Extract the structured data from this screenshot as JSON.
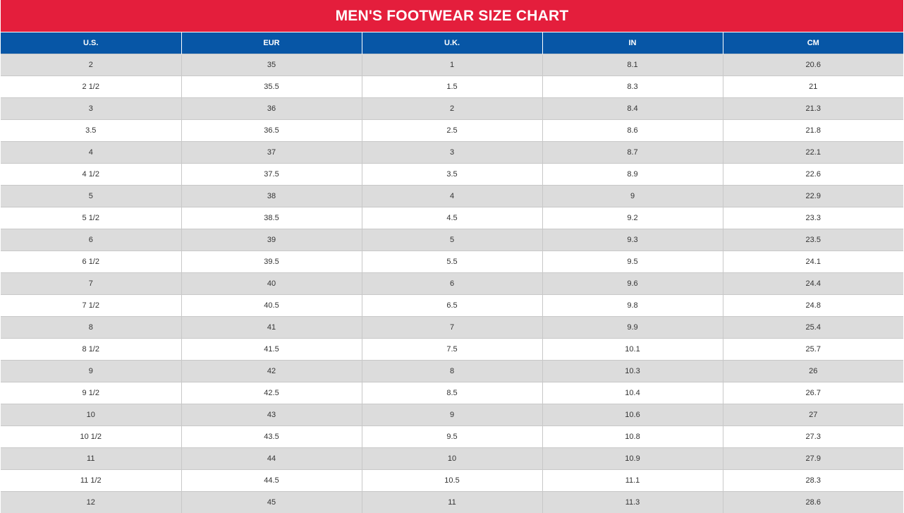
{
  "chart": {
    "title": "MEN'S FOOTWEAR SIZE CHART",
    "columns": [
      "U.S.",
      "EUR",
      "U.K.",
      "IN",
      "CM"
    ],
    "rows": [
      [
        "2",
        "35",
        "1",
        "8.1",
        "20.6"
      ],
      [
        "2 1/2",
        "35.5",
        "1.5",
        "8.3",
        "21"
      ],
      [
        "3",
        "36",
        "2",
        "8.4",
        "21.3"
      ],
      [
        "3.5",
        "36.5",
        "2.5",
        "8.6",
        "21.8"
      ],
      [
        "4",
        "37",
        "3",
        "8.7",
        "22.1"
      ],
      [
        "4 1/2",
        "37.5",
        "3.5",
        "8.9",
        "22.6"
      ],
      [
        "5",
        "38",
        "4",
        "9",
        "22.9"
      ],
      [
        "5 1/2",
        "38.5",
        "4.5",
        "9.2",
        "23.3"
      ],
      [
        "6",
        "39",
        "5",
        "9.3",
        "23.5"
      ],
      [
        "6 1/2",
        "39.5",
        "5.5",
        "9.5",
        "24.1"
      ],
      [
        "7",
        "40",
        "6",
        "9.6",
        "24.4"
      ],
      [
        "7 1/2",
        "40.5",
        "6.5",
        "9.8",
        "24.8"
      ],
      [
        "8",
        "41",
        "7",
        "9.9",
        "25.4"
      ],
      [
        "8 1/2",
        "41.5",
        "7.5",
        "10.1",
        "25.7"
      ],
      [
        "9",
        "42",
        "8",
        "10.3",
        "26"
      ],
      [
        "9 1/2",
        "42.5",
        "8.5",
        "10.4",
        "26.7"
      ],
      [
        "10",
        "43",
        "9",
        "10.6",
        "27"
      ],
      [
        "10 1/2",
        "43.5",
        "9.5",
        "10.8",
        "27.3"
      ],
      [
        "11",
        "44",
        "10",
        "10.9",
        "27.9"
      ],
      [
        "11 1/2",
        "44.5",
        "10.5",
        "11.1",
        "28.3"
      ],
      [
        "12",
        "45",
        "11",
        "11.3",
        "28.6"
      ]
    ]
  },
  "colors": {
    "title_background": "#e41e3c",
    "header_background": "#0756a6",
    "shaded_row": "#dcdcdc",
    "plain_row": "#ffffff"
  }
}
